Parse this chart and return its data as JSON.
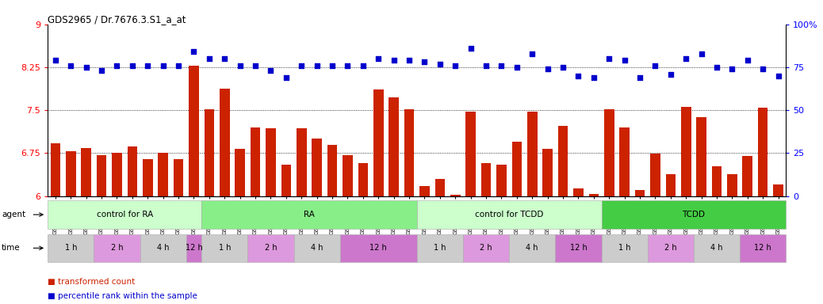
{
  "title": "GDS2965 / Dr.7676.3.S1_a_at",
  "samples": [
    "GSM228874",
    "GSM228875",
    "GSM228876",
    "GSM228880",
    "GSM228881",
    "GSM228882",
    "GSM228886",
    "GSM228887",
    "GSM228888",
    "GSM228892",
    "GSM228893",
    "GSM228894",
    "GSM228871",
    "GSM228872",
    "GSM228873",
    "GSM228877",
    "GSM228878",
    "GSM228879",
    "GSM228883",
    "GSM228884",
    "GSM228885",
    "GSM228889",
    "GSM228890",
    "GSM228891",
    "GSM228898",
    "GSM228899",
    "GSM228900",
    "GSM228905",
    "GSM228906",
    "GSM228907",
    "GSM228911",
    "GSM228912",
    "GSM228913",
    "GSM228917",
    "GSM228918",
    "GSM228919",
    "GSM228895",
    "GSM228896",
    "GSM228897",
    "GSM228901",
    "GSM228903",
    "GSM228904",
    "GSM228908",
    "GSM228909",
    "GSM228910",
    "GSM228914",
    "GSM228915",
    "GSM228916"
  ],
  "bar_values": [
    6.92,
    6.78,
    6.84,
    6.71,
    6.76,
    6.86,
    6.64,
    6.76,
    6.64,
    8.28,
    7.52,
    7.88,
    6.82,
    7.2,
    7.18,
    6.55,
    7.18,
    7.0,
    6.9,
    6.72,
    6.58,
    7.86,
    7.72,
    7.52,
    6.18,
    6.3,
    6.02,
    7.48,
    6.58,
    6.55,
    6.95,
    7.48,
    6.82,
    7.22,
    6.14,
    6.04,
    7.52,
    7.2,
    6.1,
    6.74,
    6.38,
    7.56,
    7.38,
    6.52,
    6.38,
    6.7,
    7.55,
    6.2
  ],
  "percentile_values": [
    79,
    76,
    75,
    73,
    76,
    76,
    76,
    76,
    76,
    84,
    80,
    80,
    76,
    76,
    73,
    69,
    76,
    76,
    76,
    76,
    76,
    80,
    79,
    79,
    78,
    77,
    76,
    86,
    76,
    76,
    75,
    83,
    74,
    75,
    70,
    69,
    80,
    79,
    69,
    76,
    71,
    80,
    83,
    75,
    74,
    79,
    74,
    70
  ],
  "ylim_left": [
    6.0,
    9.0
  ],
  "ylim_right": [
    0,
    100
  ],
  "yticks_left": [
    6.0,
    6.75,
    7.5,
    8.25,
    9.0
  ],
  "yticks_right": [
    0,
    25,
    50,
    75,
    100
  ],
  "bar_color": "#cc2200",
  "dot_color": "#0000cc",
  "groups": [
    {
      "label": "control for RA",
      "start": 0,
      "end": 9,
      "color": "#ccffcc"
    },
    {
      "label": "RA",
      "start": 10,
      "end": 23,
      "color": "#88ee88"
    },
    {
      "label": "control for TCDD",
      "start": 24,
      "end": 35,
      "color": "#ccffcc"
    },
    {
      "label": "TCDD",
      "start": 36,
      "end": 47,
      "color": "#44cc44"
    }
  ],
  "time_groups": [
    {
      "label": "1 h",
      "start": 0,
      "end": 2,
      "color": "#cccccc"
    },
    {
      "label": "2 h",
      "start": 3,
      "end": 5,
      "color": "#dd99dd"
    },
    {
      "label": "4 h",
      "start": 6,
      "end": 8,
      "color": "#cccccc"
    },
    {
      "label": "12 h",
      "start": 9,
      "end": 9,
      "color": "#cc77cc"
    },
    {
      "label": "1 h",
      "start": 10,
      "end": 12,
      "color": "#cccccc"
    },
    {
      "label": "2 h",
      "start": 13,
      "end": 15,
      "color": "#dd99dd"
    },
    {
      "label": "4 h",
      "start": 16,
      "end": 18,
      "color": "#cccccc"
    },
    {
      "label": "12 h",
      "start": 19,
      "end": 23,
      "color": "#cc77cc"
    },
    {
      "label": "1 h",
      "start": 24,
      "end": 26,
      "color": "#cccccc"
    },
    {
      "label": "2 h",
      "start": 27,
      "end": 29,
      "color": "#dd99dd"
    },
    {
      "label": "4 h",
      "start": 30,
      "end": 32,
      "color": "#cccccc"
    },
    {
      "label": "12 h",
      "start": 33,
      "end": 35,
      "color": "#cc77cc"
    },
    {
      "label": "1 h",
      "start": 36,
      "end": 38,
      "color": "#cccccc"
    },
    {
      "label": "2 h",
      "start": 39,
      "end": 41,
      "color": "#dd99dd"
    },
    {
      "label": "4 h",
      "start": 42,
      "end": 44,
      "color": "#cccccc"
    },
    {
      "label": "12 h",
      "start": 45,
      "end": 47,
      "color": "#cc77cc"
    }
  ]
}
